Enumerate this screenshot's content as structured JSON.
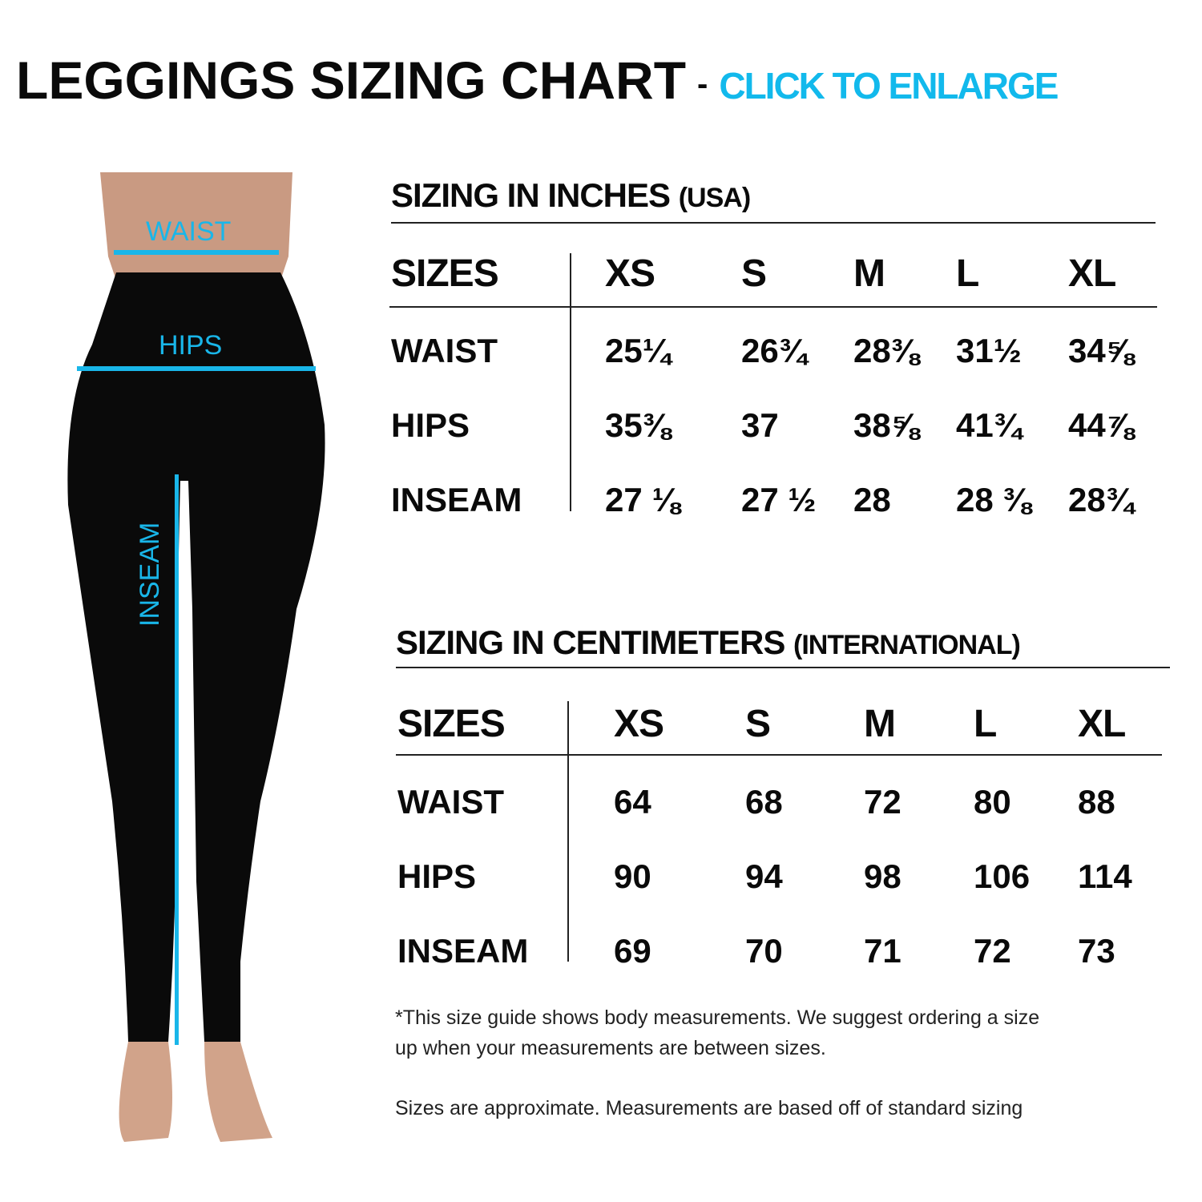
{
  "title": {
    "main": "LEGGINGS SIZING CHART",
    "separator": "-",
    "cta": "CLICK TO ENLARGE"
  },
  "figure": {
    "waist": "WAIST",
    "hips": "HIPS",
    "inseam": "INSEAM",
    "accent": "#19b6e9"
  },
  "inches": {
    "title": "SIZING IN INCHES",
    "subtitle": "(USA)",
    "header": [
      "SIZES",
      "XS",
      "S",
      "M",
      "L",
      "XL"
    ],
    "rows": [
      {
        "label": "WAIST",
        "values": [
          "25¼",
          "26¾",
          "28⅜",
          "31½",
          "34⅝"
        ]
      },
      {
        "label": "HIPS",
        "values": [
          "35⅜",
          "37",
          "38⅝",
          "41¾",
          "44⅞"
        ]
      },
      {
        "label": "INSEAM",
        "values": [
          "27 ⅛",
          "27 ½",
          "28",
          "28 ⅜",
          "28¾"
        ]
      }
    ]
  },
  "cm": {
    "title": "SIZING IN CENTIMETERS",
    "subtitle": "(INTERNATIONAL)",
    "header": [
      "SIZES",
      "XS",
      "S",
      "M",
      "L",
      "XL"
    ],
    "rows": [
      {
        "label": "WAIST",
        "values": [
          "64",
          "68",
          "72",
          "80",
          "88"
        ]
      },
      {
        "label": "HIPS",
        "values": [
          "90",
          "94",
          "98",
          "106",
          "114"
        ]
      },
      {
        "label": "INSEAM",
        "values": [
          "69",
          "70",
          "71",
          "72",
          "73"
        ]
      }
    ]
  },
  "notes": {
    "line1": "*This size guide shows body measurements. We suggest ordering a size",
    "line2": "up when your measurements are between sizes.",
    "line3": "Sizes are approximate. Measurements are based off of standard sizing"
  }
}
